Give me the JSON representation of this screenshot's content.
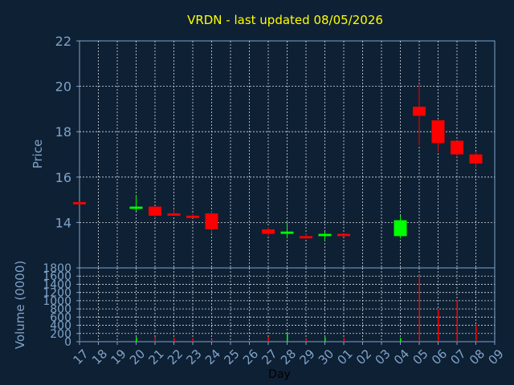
{
  "chart_data": [
    {
      "type": "candlestick",
      "title": "VRDN - last updated 08/05/2026",
      "ylabel": "Price",
      "ylim": [
        12,
        22
      ],
      "yticks": [
        "14",
        "16",
        "18",
        "20",
        "22"
      ],
      "grid": true,
      "categories": [
        "17",
        "18",
        "19",
        "20",
        "21",
        "22",
        "23",
        "24",
        "25",
        "26",
        "27",
        "28",
        "29",
        "30",
        "01",
        "02",
        "03",
        "04",
        "05",
        "06",
        "07",
        "08",
        "09"
      ],
      "candles": [
        {
          "x": "17",
          "open": 14.9,
          "close": 14.8,
          "high": 14.9,
          "low": 14.8
        },
        {
          "x": "20",
          "open": 14.6,
          "close": 14.7,
          "high": 15.2,
          "low": 14.5
        },
        {
          "x": "21",
          "open": 14.7,
          "close": 14.3,
          "high": 14.7,
          "low": 14.2
        },
        {
          "x": "22",
          "open": 14.4,
          "close": 14.3,
          "high": 14.6,
          "low": 14.3
        },
        {
          "x": "23",
          "open": 14.3,
          "close": 14.2,
          "high": 14.4,
          "low": 14.2
        },
        {
          "x": "24",
          "open": 14.4,
          "close": 13.7,
          "high": 14.5,
          "low": 13.5
        },
        {
          "x": "27",
          "open": 13.7,
          "close": 13.5,
          "high": 13.8,
          "low": 13.4
        },
        {
          "x": "28",
          "open": 13.5,
          "close": 13.6,
          "high": 14.0,
          "low": 13.3
        },
        {
          "x": "29",
          "open": 13.4,
          "close": 13.3,
          "high": 13.5,
          "low": 13.3
        },
        {
          "x": "30",
          "open": 13.4,
          "close": 13.5,
          "high": 13.6,
          "low": 13.2
        },
        {
          "x": "01",
          "open": 13.5,
          "close": 13.4,
          "high": 13.5,
          "low": 13.4
        },
        {
          "x": "04",
          "open": 13.4,
          "close": 14.1,
          "high": 14.3,
          "low": 13.3
        },
        {
          "x": "05",
          "open": 19.1,
          "close": 18.7,
          "high": 20.1,
          "low": 17.4
        },
        {
          "x": "06",
          "open": 18.5,
          "close": 17.5,
          "high": 18.5,
          "low": 17.1
        },
        {
          "x": "07",
          "open": 17.6,
          "close": 17.0,
          "high": 17.6,
          "low": 16.9
        },
        {
          "x": "08",
          "open": 17.0,
          "close": 16.6,
          "high": 17.1,
          "low": 16.4
        }
      ]
    },
    {
      "type": "bar",
      "ylabel": "Volume (0000)",
      "xlabel": "Day",
      "ylim": [
        0,
        1800
      ],
      "yticks": [
        "0",
        "200",
        "400",
        "600",
        "800",
        "1000",
        "1200",
        "1400",
        "1600",
        "1800"
      ],
      "grid": true,
      "categories": [
        "17",
        "18",
        "19",
        "20",
        "21",
        "22",
        "23",
        "24",
        "25",
        "26",
        "27",
        "28",
        "29",
        "30",
        "01",
        "02",
        "03",
        "04",
        "05",
        "06",
        "07",
        "08",
        "09"
      ],
      "bars": [
        {
          "x": "17",
          "value": 5,
          "dir": "down"
        },
        {
          "x": "20",
          "value": 110,
          "dir": "up"
        },
        {
          "x": "21",
          "value": 120,
          "dir": "down"
        },
        {
          "x": "22",
          "value": 95,
          "dir": "down"
        },
        {
          "x": "23",
          "value": 85,
          "dir": "down"
        },
        {
          "x": "24",
          "value": 60,
          "dir": "down"
        },
        {
          "x": "27",
          "value": 120,
          "dir": "down"
        },
        {
          "x": "28",
          "value": 200,
          "dir": "up"
        },
        {
          "x": "29",
          "value": 70,
          "dir": "down"
        },
        {
          "x": "30",
          "value": 110,
          "dir": "up"
        },
        {
          "x": "01",
          "value": 95,
          "dir": "down"
        },
        {
          "x": "04",
          "value": 90,
          "dir": "up"
        },
        {
          "x": "05",
          "value": 1620,
          "dir": "down"
        },
        {
          "x": "06",
          "value": 780,
          "dir": "down"
        },
        {
          "x": "07",
          "value": 1020,
          "dir": "down"
        },
        {
          "x": "08",
          "value": 420,
          "dir": "down"
        }
      ]
    }
  ],
  "colors": {
    "background": "#0e2034",
    "axis": "#7fa3c8",
    "grid": "#d8dde4",
    "title": "#ffff00",
    "up": "#00ff00",
    "down": "#ff0000"
  }
}
